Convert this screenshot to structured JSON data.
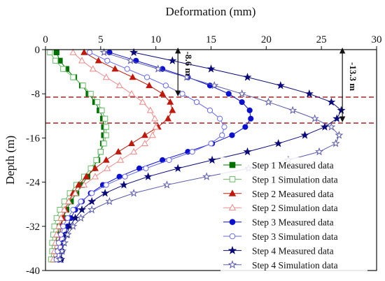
{
  "chart_data": {
    "type": "line",
    "xlabel": "Deformation (mm)",
    "ylabel": "Depth (m)",
    "x_axis_position": "top",
    "xlim": [
      0,
      30
    ],
    "ylim": [
      -40,
      0
    ],
    "xticks": [
      0,
      5,
      10,
      15,
      20,
      25,
      30
    ],
    "yticks": [
      0,
      -8,
      -16,
      -24,
      -32,
      -40
    ],
    "grid": false,
    "legend_position": "bottom-right",
    "series": [
      {
        "name": "Step 1 Measured data",
        "color": "#007000",
        "marker": "square-filled",
        "x": [
          1.0,
          1.3,
          1.9,
          2.6,
          3.3,
          3.9,
          4.5,
          4.9,
          5.2,
          5.3,
          5.3,
          5.2,
          5.0,
          4.7,
          4.3,
          3.8,
          3.3,
          2.8,
          2.3,
          1.9,
          1.6,
          1.3,
          1.1,
          0.9,
          0.8,
          0.7
        ],
        "y": [
          -0.5,
          -2,
          -3.5,
          -5,
          -6.5,
          -8,
          -9.5,
          -11,
          -12.5,
          -14,
          -15.5,
          -17,
          -18.5,
          -20,
          -21.5,
          -23,
          -24.5,
          -26,
          -27.5,
          -29,
          -30.5,
          -32,
          -33.5,
          -35,
          -36.5,
          -38
        ]
      },
      {
        "name": "Step 1 Simulation data",
        "color": "#66bb66",
        "marker": "square-open",
        "x": [
          0.4,
          0.9,
          1.6,
          2.5,
          3.4,
          4.1,
          4.7,
          5.1,
          5.4,
          5.5,
          5.5,
          5.3,
          5.0,
          4.6,
          4.1,
          3.5,
          2.8,
          2.2,
          1.7,
          1.3,
          1.0,
          0.8,
          0.7,
          0.6,
          0.6,
          0.5
        ],
        "y": [
          -0.5,
          -2,
          -3.5,
          -5,
          -6.5,
          -8,
          -9.5,
          -11,
          -12.5,
          -14,
          -15.5,
          -17,
          -18.5,
          -20,
          -21.5,
          -23,
          -24.5,
          -26,
          -27.5,
          -29,
          -30.5,
          -32,
          -33.5,
          -35,
          -36.5,
          -38
        ]
      },
      {
        "name": "Step 2 Measured data",
        "color": "#c0180c",
        "marker": "triangle-filled",
        "x": [
          3.5,
          4.8,
          6.3,
          7.9,
          9.4,
          10.6,
          11.3,
          11.5,
          11.1,
          10.2,
          9.0,
          7.8,
          6.6,
          5.5,
          4.5,
          3.7,
          3.0,
          2.5,
          2.1,
          1.8,
          1.6,
          1.4,
          1.3,
          1.2,
          1.1,
          1.0
        ],
        "y": [
          -0.5,
          -2,
          -3.5,
          -5,
          -6.5,
          -8,
          -9.5,
          -11,
          -12.5,
          -14,
          -15.5,
          -17,
          -18.5,
          -20,
          -21.5,
          -23,
          -24.5,
          -26,
          -27.5,
          -29,
          -30.5,
          -32,
          -33.5,
          -35,
          -36.5,
          -38
        ]
      },
      {
        "name": "Step 2 Simulation data",
        "color": "#ee8888",
        "marker": "triangle-open",
        "x": [
          2.5,
          3.3,
          4.3,
          5.5,
          6.7,
          7.8,
          8.8,
          9.5,
          9.9,
          10.0,
          9.7,
          9.0,
          8.0,
          6.8,
          5.6,
          4.5,
          3.5,
          2.7,
          2.1,
          1.7,
          1.4,
          1.2,
          1.0,
          0.9,
          0.8,
          0.7
        ],
        "y": [
          -0.5,
          -2,
          -3.5,
          -5,
          -6.5,
          -8,
          -9.5,
          -11,
          -12.5,
          -14,
          -15.5,
          -17,
          -18.5,
          -20,
          -21.5,
          -23,
          -24.5,
          -26,
          -27.5,
          -29,
          -30.5,
          -32,
          -33.5,
          -35,
          -36.5,
          -38
        ]
      },
      {
        "name": "Step 3 Measured data",
        "color": "#0b10d0",
        "marker": "circle-filled",
        "x": [
          5.8,
          8.2,
          10.6,
          12.9,
          14.9,
          16.6,
          17.8,
          18.5,
          18.6,
          18.1,
          16.9,
          15.1,
          12.9,
          10.6,
          8.5,
          6.7,
          5.2,
          4.1,
          3.3,
          2.7,
          2.3,
          2.0,
          1.8,
          1.6,
          1.5,
          1.4
        ],
        "y": [
          -0.5,
          -2,
          -3.5,
          -5,
          -6.5,
          -8,
          -9.5,
          -11,
          -12.5,
          -14,
          -15.5,
          -17,
          -18.5,
          -20,
          -21.5,
          -23,
          -24.5,
          -26,
          -27.5,
          -29,
          -30.5,
          -32,
          -33.5,
          -35,
          -36.5,
          -38
        ]
      },
      {
        "name": "Step 3 Simulation data",
        "color": "#6666ee",
        "marker": "circle-open",
        "x": [
          4.0,
          5.6,
          7.4,
          9.2,
          10.9,
          12.4,
          13.7,
          14.9,
          15.8,
          16.2,
          16.0,
          15.0,
          13.3,
          11.2,
          9.1,
          7.2,
          5.5,
          4.2,
          3.2,
          2.5,
          2.0,
          1.6,
          1.4,
          1.2,
          1.1,
          1.0
        ],
        "y": [
          -0.5,
          -2,
          -3.5,
          -5,
          -6.5,
          -8,
          -9.5,
          -11,
          -12.5,
          -14,
          -15.5,
          -17,
          -18.5,
          -20,
          -21.5,
          -23,
          -24.5,
          -26,
          -27.5,
          -29,
          -30.5,
          -32,
          -33.5,
          -35,
          -36.5,
          -38
        ]
      },
      {
        "name": "Step 4 Measured data",
        "color": "#0a0a78",
        "marker": "star-filled",
        "x": [
          8.0,
          11.5,
          15.0,
          18.3,
          21.3,
          23.9,
          25.9,
          26.8,
          26.4,
          25.3,
          23.5,
          21.1,
          18.3,
          15.1,
          12.0,
          9.3,
          7.1,
          5.4,
          4.2,
          3.3,
          2.7,
          2.2,
          1.9,
          1.7,
          1.5,
          1.4
        ],
        "y": [
          -0.5,
          -2,
          -3.5,
          -5,
          -6.5,
          -8,
          -9.5,
          -11,
          -12.5,
          -14,
          -15.5,
          -17,
          -18.5,
          -20,
          -21.5,
          -23,
          -24.5,
          -26,
          -27.5,
          -29,
          -30.5,
          -32,
          -33.5,
          -35,
          -36.5,
          -38
        ]
      },
      {
        "name": "Step 4 Simulation data",
        "color": "#5a5aaa",
        "marker": "star-open",
        "x": [
          5.3,
          7.7,
          10.2,
          12.8,
          15.3,
          17.8,
          20.2,
          22.4,
          24.4,
          25.9,
          26.6,
          26.3,
          24.8,
          22.0,
          18.4,
          14.6,
          11.0,
          8.0,
          5.8,
          4.2,
          3.2,
          2.5,
          2.0,
          1.7,
          1.5,
          1.3
        ],
        "y": [
          -0.5,
          -2,
          -3.5,
          -5,
          -6.5,
          -8,
          -9.5,
          -11,
          -12.5,
          -14,
          -15.5,
          -17,
          -18.5,
          -20,
          -21.5,
          -23,
          -24.5,
          -26,
          -27.5,
          -29,
          -30.5,
          -32,
          -33.5,
          -35,
          -36.5,
          -38
        ]
      }
    ],
    "reference_lines": [
      {
        "depth": -8.6,
        "style": "dashed",
        "color": "#a01010"
      },
      {
        "depth": -13.3,
        "style": "dashed",
        "color": "#a01010"
      }
    ],
    "annotations": [
      {
        "text": "-8.6 m",
        "x": 12.0,
        "y_from": 0,
        "y_to": -8.6
      },
      {
        "text": "-13.3 m",
        "x": 26.9,
        "y_from": 0,
        "y_to": -13.3
      }
    ]
  }
}
